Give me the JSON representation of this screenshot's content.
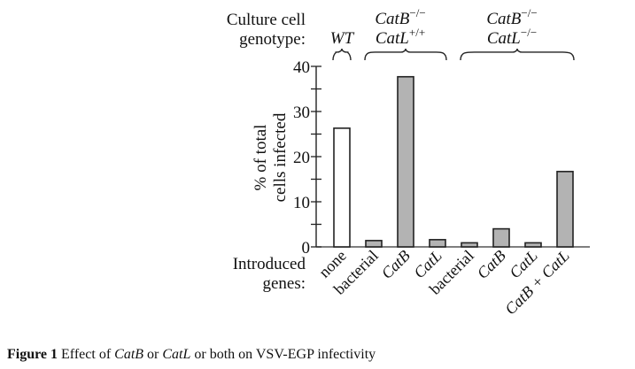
{
  "chart_data": {
    "type": "bar",
    "title": "",
    "xlabel": "Introduced genes:",
    "ylabel": "% of total cells infected",
    "ylim": [
      0,
      40
    ],
    "yticks_major": [
      0,
      10,
      20,
      30,
      40
    ],
    "yticks_minor_step": 5,
    "grid": false,
    "header_label": "Culture cell genotype:",
    "groups": [
      {
        "label_line1": "WT",
        "label_line2": "",
        "sup1": "",
        "sup2": "",
        "bars": [
          0
        ]
      },
      {
        "label_line1": "CatB",
        "sup1": "−/−",
        "label_line2": "CatL",
        "sup2": "+/+",
        "bars": [
          1,
          2,
          3
        ]
      },
      {
        "label_line1": "CatB",
        "sup1": "−/−",
        "label_line2": "CatL",
        "sup2": "−/−",
        "bars": [
          4,
          5,
          6,
          7
        ]
      }
    ],
    "categories": [
      "none",
      "bacterial",
      "CatB",
      "CatL",
      "bacterial",
      "CatB",
      "CatL",
      "CatB + CatL"
    ],
    "category_italic": [
      false,
      false,
      true,
      true,
      false,
      true,
      true,
      true
    ],
    "values": [
      26.3,
      1.4,
      37.7,
      1.6,
      0.9,
      4.0,
      0.9,
      16.7
    ],
    "bar_colors": [
      "#ffffff",
      "#b3b3b3",
      "#b3b3b3",
      "#b3b3b3",
      "#b3b3b3",
      "#b3b3b3",
      "#b3b3b3",
      "#b3b3b3"
    ],
    "ylabel_lines": [
      "% of total",
      "cells infected"
    ],
    "xlabel_lines": [
      "Introduced",
      "genes:"
    ],
    "header_lines": [
      "Culture cell",
      "genotype:"
    ]
  },
  "caption": {
    "figure_label": "Figure 1",
    "text_parts": [
      {
        "text": " Effect of ",
        "italic": false
      },
      {
        "text": "CatB",
        "italic": true
      },
      {
        "text": " or ",
        "italic": false
      },
      {
        "text": "CatL",
        "italic": true
      },
      {
        "text": " or both on VSV-EGP infectivity",
        "italic": false
      }
    ]
  }
}
